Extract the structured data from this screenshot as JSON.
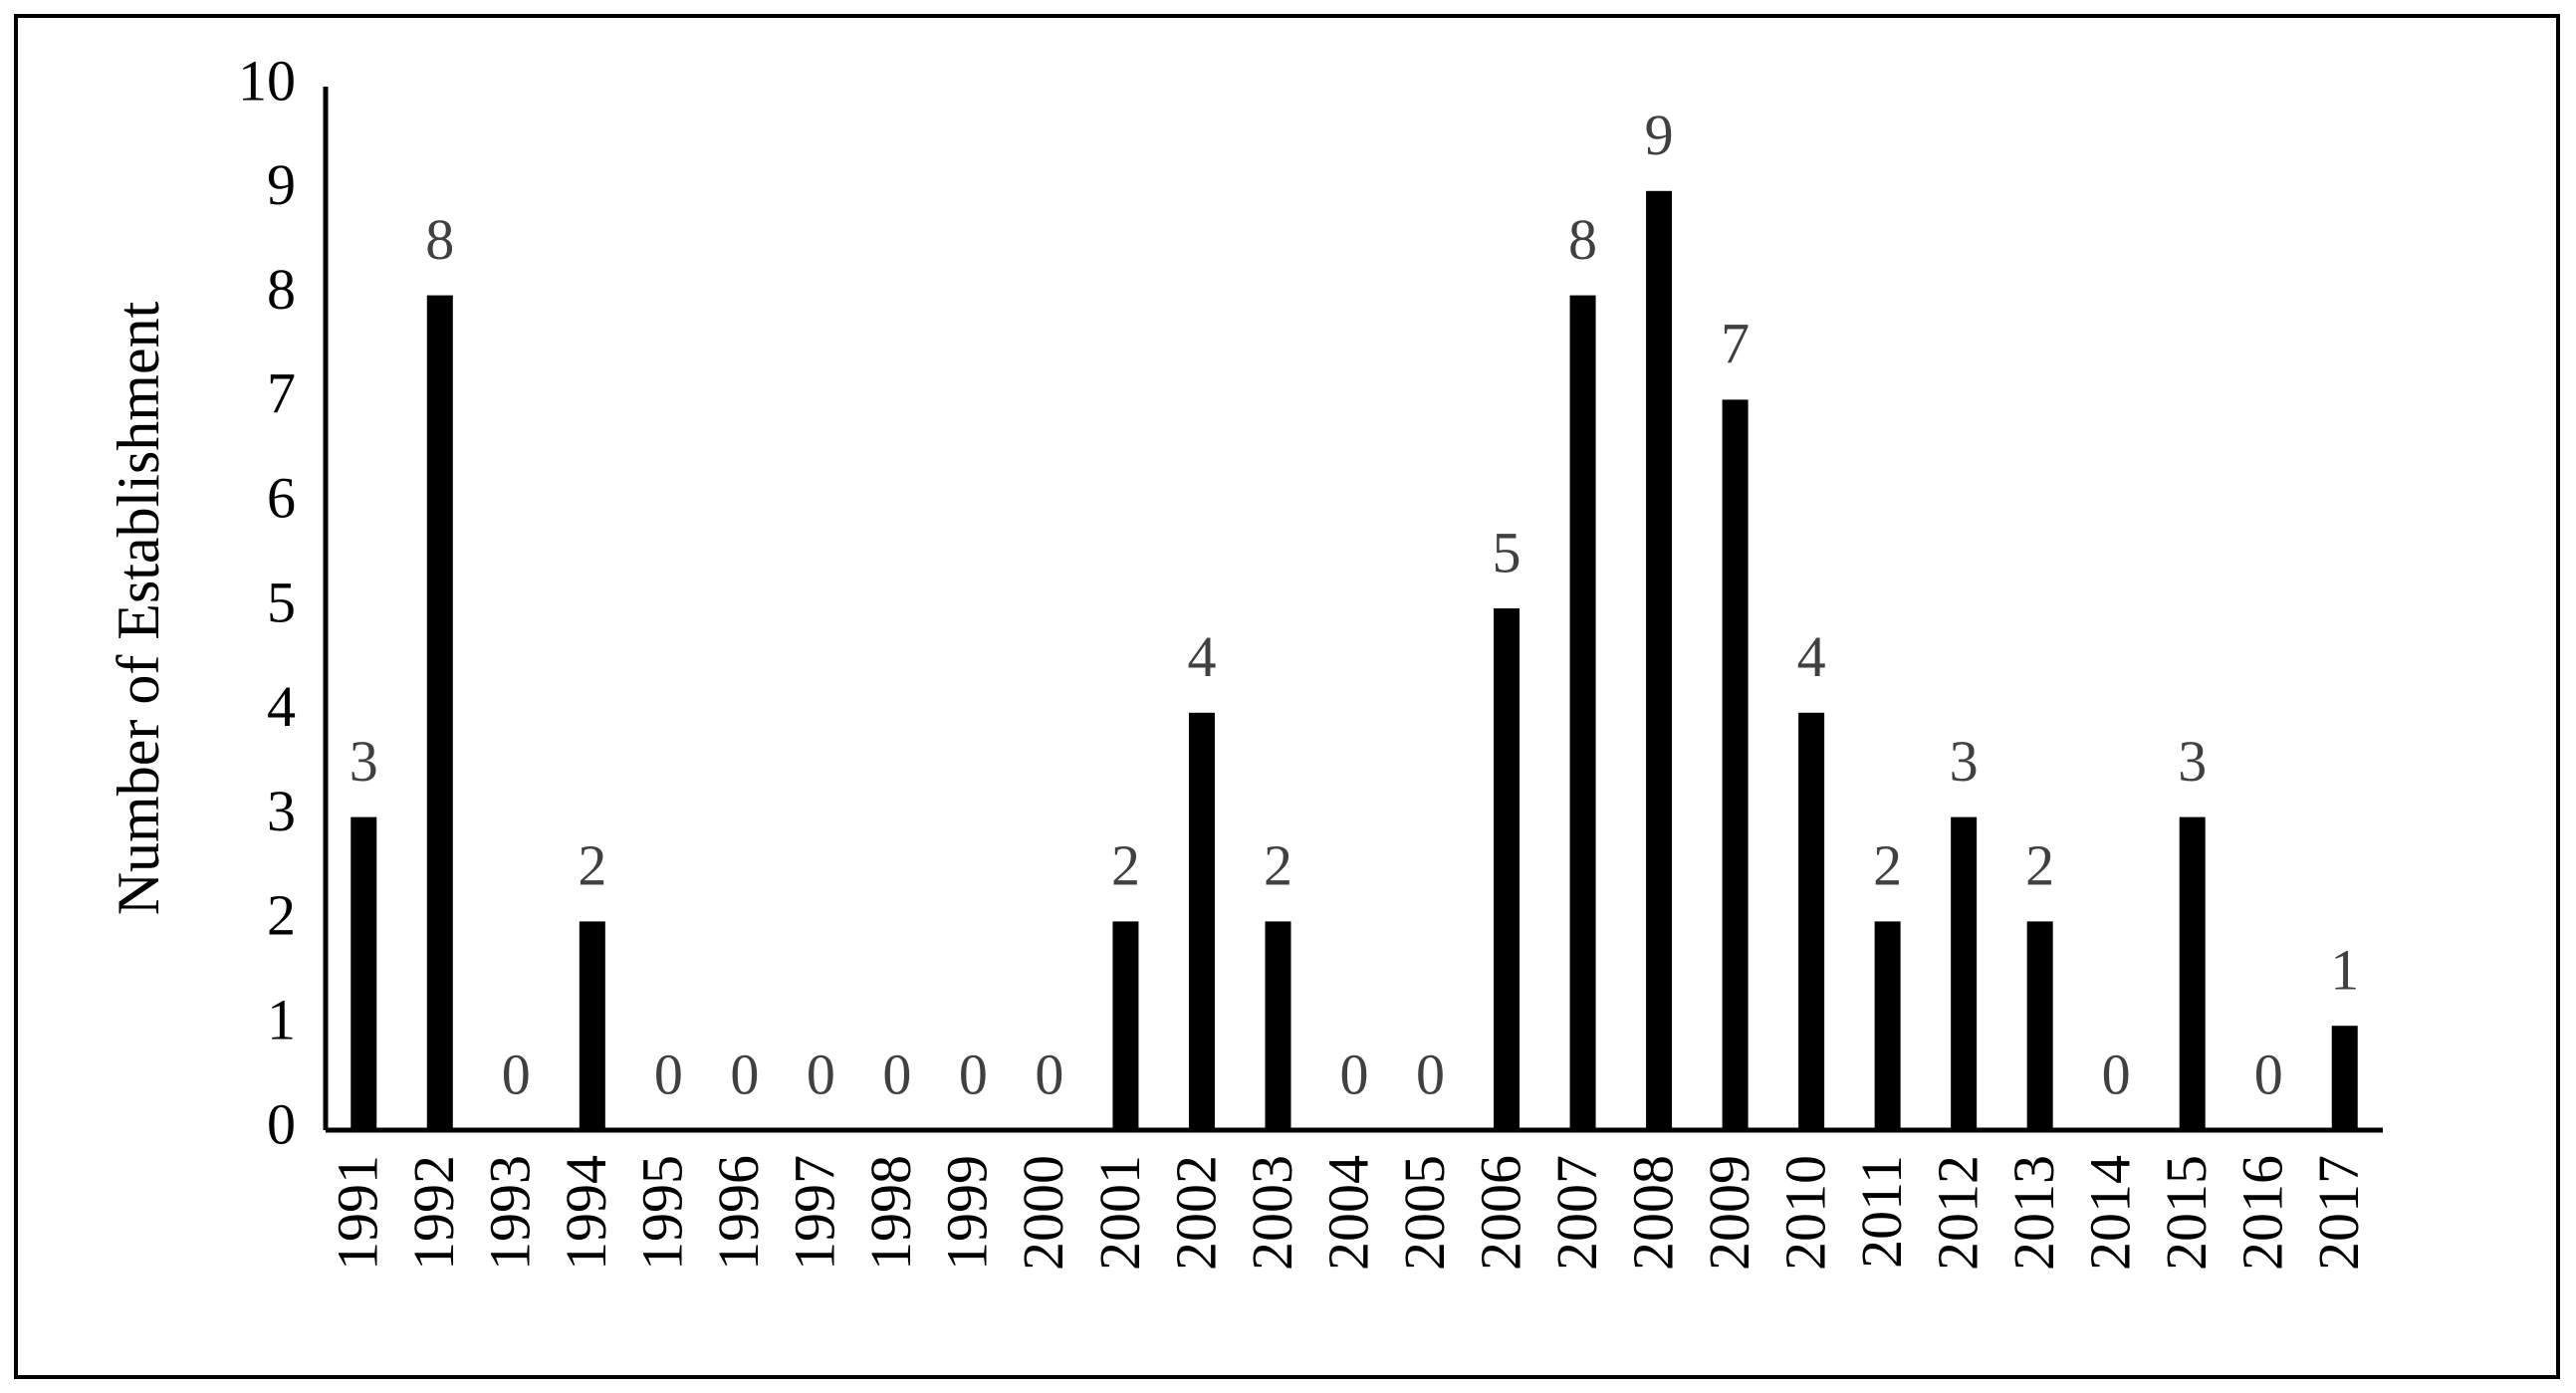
{
  "chart_data": {
    "type": "bar",
    "y_label": "Number of Establishment",
    "categories": [
      "1991",
      "1992",
      "1993",
      "1994",
      "1995",
      "1996",
      "1997",
      "1998",
      "1999",
      "2000",
      "2001",
      "2002",
      "2003",
      "2004",
      "2005",
      "2006",
      "2007",
      "2008",
      "2009",
      "2010",
      "2011",
      "2012",
      "2013",
      "2014",
      "2015",
      "2016",
      "2017"
    ],
    "values": [
      3,
      8,
      0,
      2,
      0,
      0,
      0,
      0,
      0,
      0,
      2,
      4,
      2,
      0,
      0,
      5,
      8,
      9,
      7,
      4,
      2,
      3,
      2,
      0,
      3,
      0,
      1
    ],
    "color": "#000000",
    "ylim": [
      0,
      10
    ],
    "yticks": [
      0,
      1,
      2,
      3,
      4,
      5,
      6,
      7,
      8,
      9,
      10
    ],
    "grid": false
  }
}
